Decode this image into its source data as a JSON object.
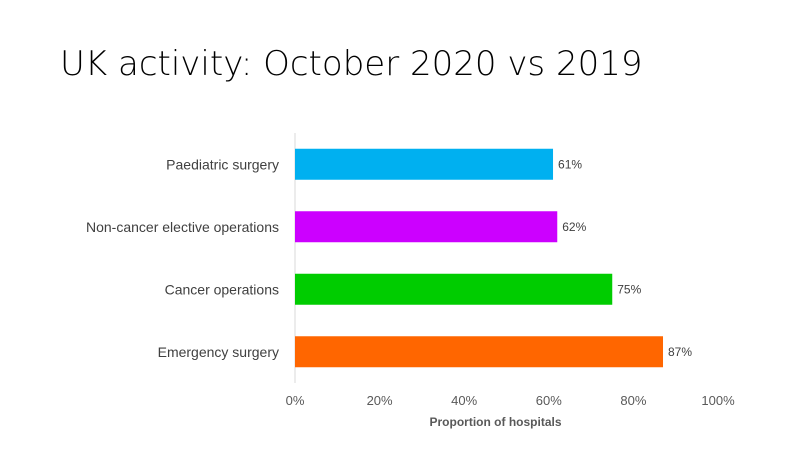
{
  "chart_data": {
    "type": "bar",
    "orientation": "horizontal",
    "title": "UK activity: October 2020 vs 2019",
    "categories": [
      "Paediatric surgery",
      "Non-cancer elective operations",
      "Cancer operations",
      "Emergency surgery"
    ],
    "values": [
      61,
      62,
      75,
      87
    ],
    "value_labels": [
      "61%",
      "62%",
      "75%",
      "87%"
    ],
    "colors": [
      "#00b0f0",
      "#cc00ff",
      "#00cc00",
      "#ff6600"
    ],
    "xlabel": "Proportion of hospitals",
    "ylabel": "",
    "xlim": [
      0,
      100
    ],
    "x_ticks": [
      "0%",
      "20%",
      "40%",
      "60%",
      "80%",
      "100%"
    ],
    "grid": false,
    "legend": "none"
  }
}
